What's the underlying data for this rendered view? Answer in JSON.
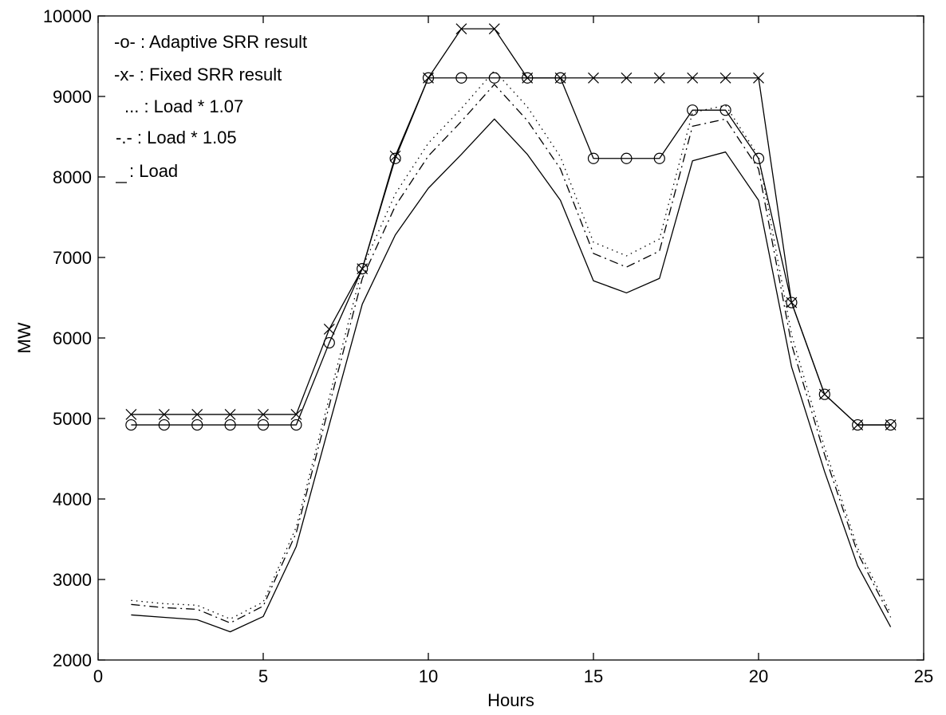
{
  "chart_data": {
    "type": "line",
    "title": "",
    "xlabel": "Hours",
    "ylabel": "MW",
    "xlim": [
      0,
      25
    ],
    "ylim": [
      2000,
      10000
    ],
    "xticks": [
      0,
      5,
      10,
      15,
      20,
      25
    ],
    "yticks": [
      2000,
      3000,
      4000,
      5000,
      6000,
      7000,
      8000,
      9000,
      10000
    ],
    "grid": false,
    "legend_position": "top-left",
    "x": [
      1,
      2,
      3,
      4,
      5,
      6,
      7,
      8,
      9,
      10,
      11,
      12,
      13,
      14,
      15,
      16,
      17,
      18,
      19,
      20,
      21,
      22,
      23,
      24
    ],
    "series": [
      {
        "name": "-o- : Adaptive SRR result",
        "style": "solid",
        "marker": "circle",
        "values": [
          4920,
          4920,
          4920,
          4920,
          4920,
          4920,
          5940,
          6860,
          8230,
          9230,
          9230,
          9230,
          9230,
          9230,
          8230,
          8230,
          8230,
          8830,
          8830,
          8230,
          6440,
          5300,
          4920,
          4920
        ]
      },
      {
        "name": "-x- : Fixed SRR result",
        "style": "solid",
        "marker": "x",
        "values": [
          5050,
          5050,
          5050,
          5050,
          5050,
          5050,
          6110,
          6860,
          8260,
          9230,
          9840,
          9840,
          9230,
          9230,
          9230,
          9230,
          9230,
          9230,
          9230,
          9230,
          6440,
          5300,
          4920,
          4920
        ]
      },
      {
        "name": "... : Load * 1.07",
        "style": "dotted",
        "marker": "none",
        "values": [
          2740,
          2700,
          2680,
          2510,
          2720,
          3650,
          5260,
          6870,
          7790,
          8420,
          8850,
          9320,
          8870,
          8250,
          7190,
          7020,
          7230,
          8800,
          8890,
          8260,
          6040,
          4640,
          3390,
          2580
        ]
      },
      {
        "name": "-.- : Load * 1.05",
        "style": "dashdot",
        "marker": "none",
        "values": [
          2690,
          2650,
          2630,
          2460,
          2670,
          3580,
          5160,
          6740,
          7640,
          8260,
          8690,
          9150,
          8700,
          8100,
          7050,
          6880,
          7080,
          8630,
          8720,
          8100,
          5920,
          4550,
          3330,
          2530
        ]
      },
      {
        "name": "__ : Load",
        "style": "solid",
        "marker": "none",
        "values": [
          2560,
          2530,
          2500,
          2350,
          2540,
          3410,
          4920,
          6420,
          7280,
          7860,
          8280,
          8720,
          8280,
          7710,
          6710,
          6560,
          6740,
          8200,
          8310,
          7710,
          5640,
          4340,
          3170,
          2410
        ]
      }
    ]
  }
}
